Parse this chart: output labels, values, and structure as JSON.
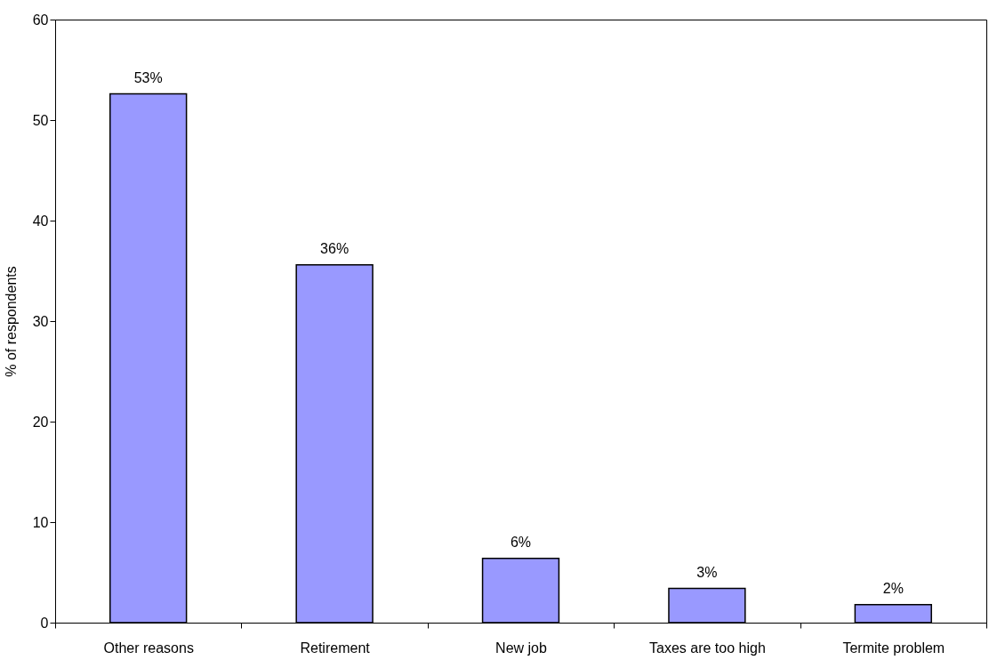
{
  "chart_data": {
    "type": "bar",
    "ylabel": "% of respondents",
    "categories": [
      "Other reasons",
      "Retirement",
      "New job",
      "Taxes are too high",
      "Termite problem"
    ],
    "values": [
      52.6,
      35.6,
      6.4,
      3.4,
      1.8
    ],
    "value_labels": [
      "53%",
      "36%",
      "6%",
      "3%",
      "2%"
    ],
    "color": "#9999ff",
    "ylim": [
      0,
      60
    ],
    "yticks": [
      0,
      10,
      20,
      30,
      40,
      50,
      60
    ],
    "grid": false
  }
}
